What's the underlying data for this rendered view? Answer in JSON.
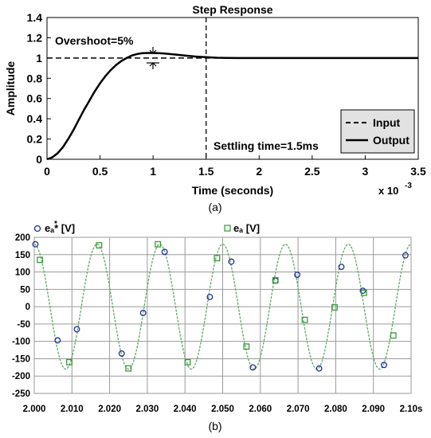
{
  "charts": [
    {
      "type": "line",
      "title": "Step Response",
      "xlabel": "Time (seconds)",
      "ylabel": "Amplitude",
      "x_exponent": "x 10",
      "x_exponent_power": "-3",
      "xlim": [
        0,
        3.5
      ],
      "ylim": [
        0,
        1.4
      ],
      "xticks": [
        "0",
        "0.5",
        "1",
        "1.5",
        "2",
        "2.5",
        "3",
        "3.5"
      ],
      "yticks": [
        "0",
        "0.2",
        "0.4",
        "0.6",
        "0.8",
        "1",
        "1.2",
        "1.4"
      ],
      "grid": false,
      "legend_position": "bottom-right",
      "series": [
        {
          "name": "Input",
          "style": "dashed",
          "x": [
            0,
            3.5
          ],
          "y": [
            1,
            1
          ]
        },
        {
          "name": "Output",
          "style": "solid",
          "x": [
            0,
            0.05,
            0.1,
            0.15,
            0.2,
            0.25,
            0.3,
            0.35,
            0.4,
            0.45,
            0.5,
            0.55,
            0.6,
            0.65,
            0.7,
            0.75,
            0.8,
            0.85,
            0.9,
            0.95,
            1.0,
            1.05,
            1.1,
            1.15,
            1.2,
            1.3,
            1.4,
            1.5,
            1.6,
            1.7,
            1.8,
            2.0,
            3.5
          ],
          "y": [
            0,
            0.02,
            0.06,
            0.12,
            0.2,
            0.29,
            0.39,
            0.49,
            0.58,
            0.67,
            0.75,
            0.82,
            0.88,
            0.93,
            0.97,
            1.0,
            1.025,
            1.04,
            1.048,
            1.05,
            1.05,
            1.048,
            1.045,
            1.04,
            1.035,
            1.025,
            1.015,
            1.008,
            1.003,
            1.001,
            1.0,
            1.0,
            1.0
          ]
        }
      ],
      "annotations": {
        "overshoot": "Overshoot=5%",
        "settling": "Settling time=1.5ms",
        "settling_time_x": 1.5
      },
      "caption": "(a)"
    },
    {
      "type": "line",
      "xlim": [
        2.0,
        2.1
      ],
      "ylim": [
        -250,
        200
      ],
      "xticks": [
        "2.000",
        "2.010",
        "2.020",
        "2.030",
        "2.040",
        "2.050",
        "2.060",
        "2.070",
        "2.080",
        "2.090",
        "2.10s"
      ],
      "yticks": [
        "200",
        "150",
        "100",
        "50",
        "0",
        "-50",
        "-100",
        "-150",
        "-200",
        "-250"
      ],
      "grid": true,
      "legend_position": "top",
      "waveform": {
        "amplitude": 180,
        "frequency_hz": 60,
        "phase_deg": 90,
        "color": "#5fa86a"
      },
      "series": [
        {
          "name": "eₐ* [V]",
          "marker": "circle",
          "color": "#1f2e8f",
          "x": [
            2.0003,
            2.0062,
            2.0113,
            2.0232,
            2.0289,
            2.0346,
            2.0466,
            2.0523,
            2.058,
            2.064,
            2.0698,
            2.0756,
            2.0815,
            2.0872,
            2.0928,
            2.0985
          ],
          "y": [
            180,
            -97,
            -65,
            -135,
            -18,
            158,
            28,
            130,
            -175,
            75,
            92,
            -178,
            115,
            46,
            -168,
            148
          ]
        },
        {
          "name": "eₐ [V]",
          "marker": "square",
          "color": "#3d9a3d",
          "x": [
            2.0015,
            2.0093,
            2.0172,
            2.025,
            2.0328,
            2.0407,
            2.0485,
            2.0563,
            2.064,
            2.0718,
            2.0797,
            2.0875,
            2.0953
          ],
          "y": [
            135,
            -160,
            177,
            -178,
            180,
            -160,
            140,
            -115,
            76,
            -38,
            -2,
            40,
            -83
          ]
        }
      ],
      "caption": "(b)"
    }
  ]
}
